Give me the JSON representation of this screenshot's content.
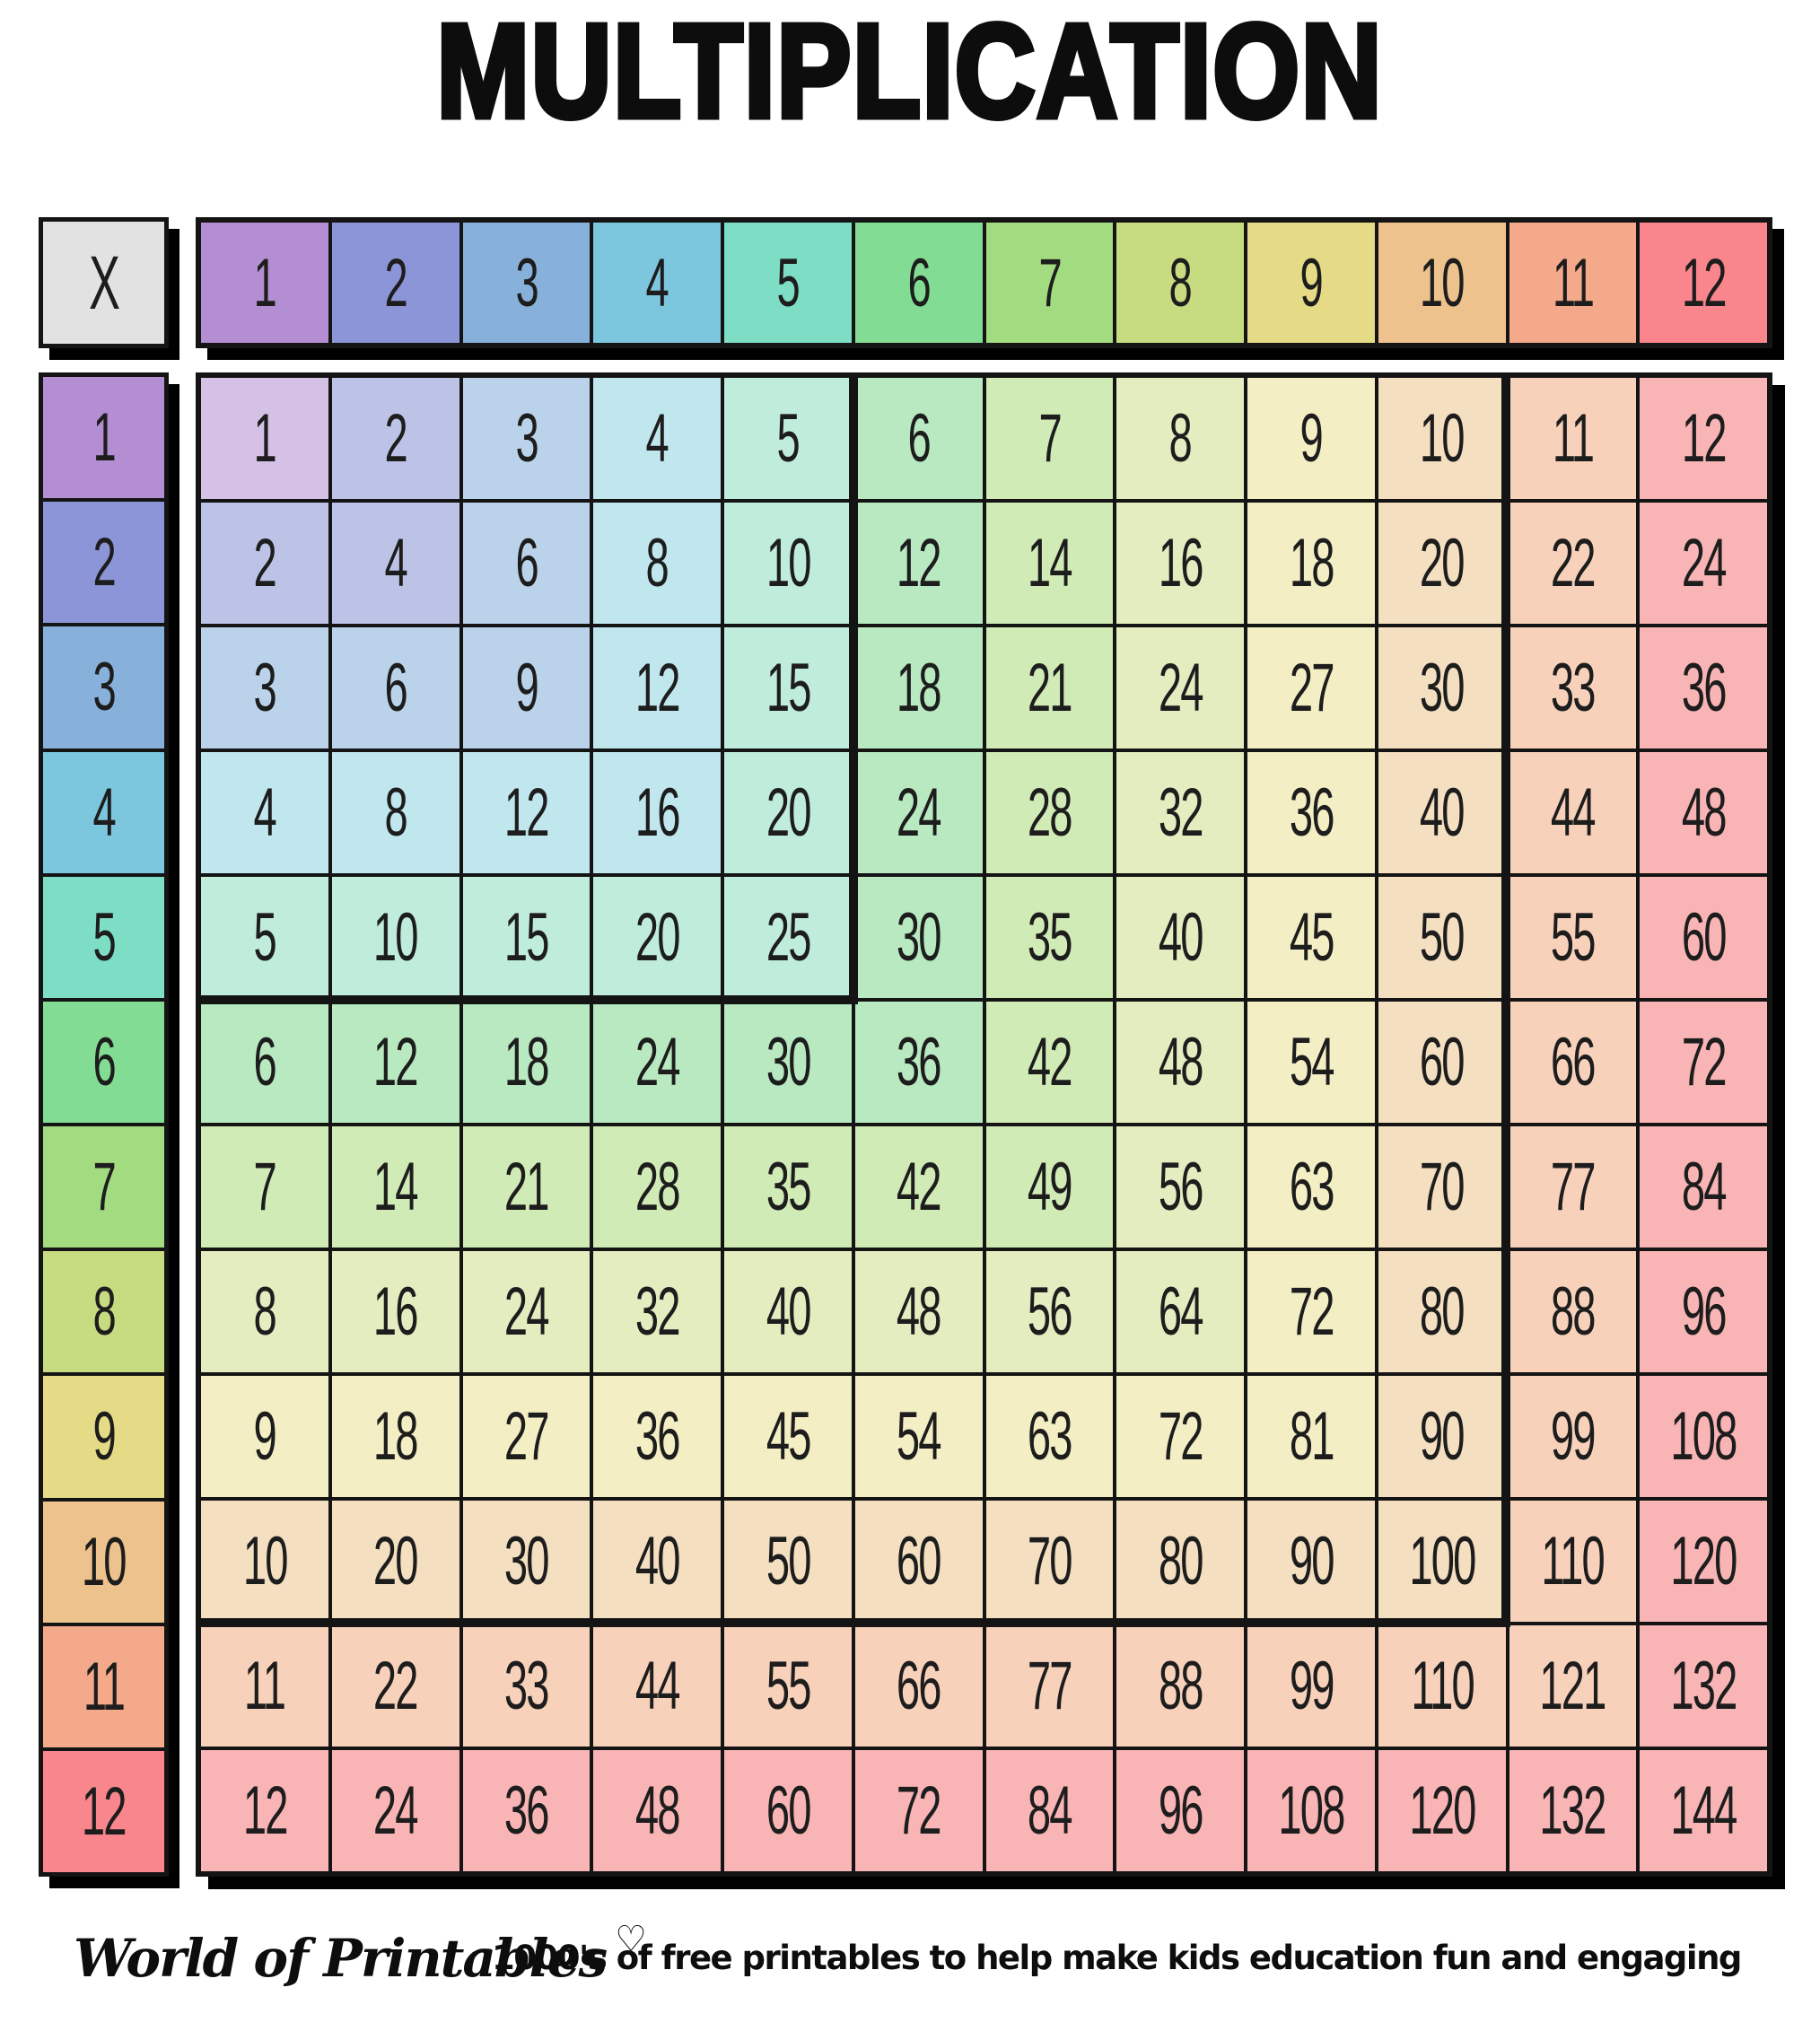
{
  "title": "MULTIPLICATION",
  "table": {
    "corner_label": "X",
    "col_headers": [
      "1",
      "2",
      "3",
      "4",
      "5",
      "6",
      "7",
      "8",
      "9",
      "10",
      "11",
      "12"
    ],
    "row_headers": [
      "1",
      "2",
      "3",
      "4",
      "5",
      "6",
      "7",
      "8",
      "9",
      "10",
      "11",
      "12"
    ],
    "values": [
      [
        1,
        2,
        3,
        4,
        5,
        6,
        7,
        8,
        9,
        10,
        11,
        12
      ],
      [
        2,
        4,
        6,
        8,
        10,
        12,
        14,
        16,
        18,
        20,
        22,
        24
      ],
      [
        3,
        6,
        9,
        12,
        15,
        18,
        21,
        24,
        27,
        30,
        33,
        36
      ],
      [
        4,
        8,
        12,
        16,
        20,
        24,
        28,
        32,
        36,
        40,
        44,
        48
      ],
      [
        5,
        10,
        15,
        20,
        25,
        30,
        35,
        40,
        45,
        50,
        55,
        60
      ],
      [
        6,
        12,
        18,
        24,
        30,
        36,
        42,
        48,
        54,
        60,
        66,
        72
      ],
      [
        7,
        14,
        21,
        28,
        35,
        42,
        49,
        56,
        63,
        70,
        77,
        84
      ],
      [
        8,
        16,
        24,
        32,
        40,
        48,
        56,
        64,
        72,
        80,
        88,
        96
      ],
      [
        9,
        18,
        27,
        36,
        45,
        54,
        63,
        72,
        81,
        90,
        99,
        108
      ],
      [
        10,
        20,
        30,
        40,
        50,
        60,
        70,
        80,
        90,
        100,
        110,
        120
      ],
      [
        11,
        22,
        33,
        44,
        55,
        66,
        77,
        88,
        99,
        110,
        121,
        132
      ],
      [
        12,
        24,
        36,
        48,
        60,
        72,
        84,
        96,
        108,
        120,
        132,
        144
      ]
    ]
  },
  "palette": {
    "solid": [
      "#b38ed2",
      "#8b95d7",
      "#87b1da",
      "#7cc6de",
      "#7eddc5",
      "#82dc93",
      "#a3db80",
      "#c7db80",
      "#e5db86",
      "#eec28c",
      "#f4aa8a",
      "#f8868c"
    ],
    "tint": [
      "#d6c1e6",
      "#bdc3e7",
      "#bbd3ea",
      "#c1e7ee",
      "#c0ecdc",
      "#b8e9c1",
      "#d0ebb5",
      "#e3edc0",
      "#f3eec3",
      "#f4dfc1",
      "#f8d1bb",
      "#f9b4b5"
    ],
    "corner_bg": "#e2e2e2",
    "border": "#141414",
    "shadow": "#000000"
  },
  "footer": {
    "brand": "World of Printables",
    "heart_icon": "♡",
    "tagline": "1000's of free printables to help make kids education fun and engaging"
  }
}
